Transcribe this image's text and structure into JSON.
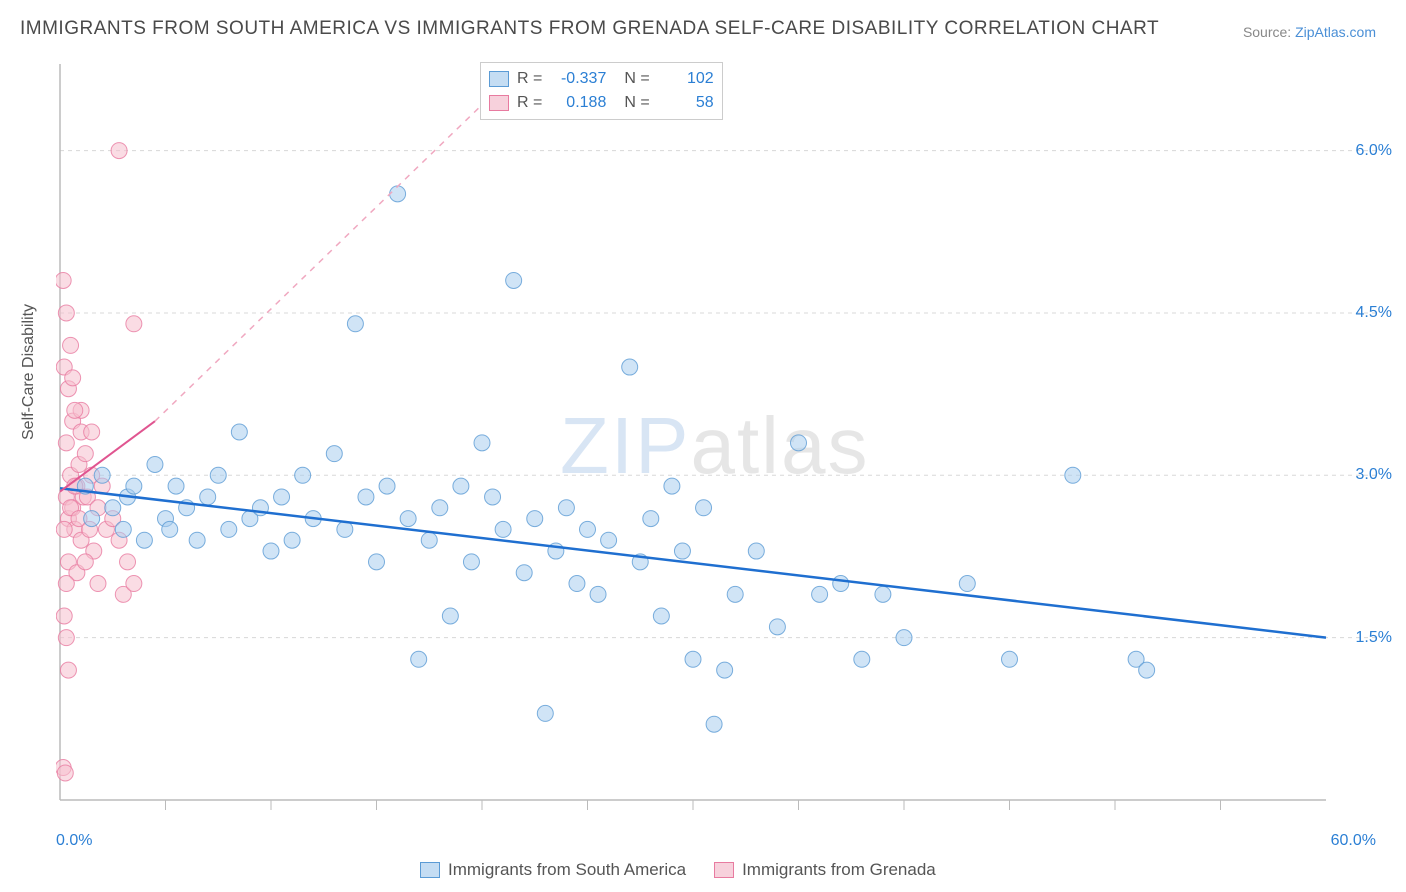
{
  "title": "IMMIGRANTS FROM SOUTH AMERICA VS IMMIGRANTS FROM GRENADA SELF-CARE DISABILITY CORRELATION CHART",
  "source_prefix": "Source: ",
  "source_link": "ZipAtlas.com",
  "ylabel": "Self-Care Disability",
  "watermark_a": "ZIP",
  "watermark_b": "atlas",
  "chart": {
    "type": "scatter",
    "xlim": [
      0,
      60
    ],
    "ylim": [
      0,
      6.8
    ],
    "xtick_min_label": "0.0%",
    "xtick_max_label": "60.0%",
    "xtick_positions": [
      5,
      10,
      15,
      20,
      25,
      30,
      35,
      40,
      45,
      50,
      55
    ],
    "ytick_positions": [
      1.5,
      3.0,
      4.5,
      6.0
    ],
    "ytick_labels": [
      "1.5%",
      "3.0%",
      "4.5%",
      "6.0%"
    ],
    "grid_color": "#d8d8d8",
    "axis_color": "#bbbbbb",
    "background_color": "#ffffff",
    "marker_radius": 8,
    "marker_opacity": 0.55,
    "series": [
      {
        "name": "Immigrants from South America",
        "fill": "#a9cdef",
        "stroke": "#5b9bd5",
        "swatch_fill": "#c5ddf3",
        "swatch_stroke": "#5b9bd5",
        "R": "-0.337",
        "N": "102",
        "trend": {
          "x1": 0,
          "y1": 2.88,
          "x2": 60,
          "y2": 1.5,
          "color": "#1f6fd0",
          "width": 2.5,
          "dash": ""
        },
        "points": [
          [
            1.2,
            2.9
          ],
          [
            1.5,
            2.6
          ],
          [
            2.0,
            3.0
          ],
          [
            2.5,
            2.7
          ],
          [
            3.0,
            2.5
          ],
          [
            3.2,
            2.8
          ],
          [
            3.5,
            2.9
          ],
          [
            4.0,
            2.4
          ],
          [
            4.5,
            3.1
          ],
          [
            5.0,
            2.6
          ],
          [
            5.2,
            2.5
          ],
          [
            5.5,
            2.9
          ],
          [
            6.0,
            2.7
          ],
          [
            6.5,
            2.4
          ],
          [
            7.0,
            2.8
          ],
          [
            7.5,
            3.0
          ],
          [
            8.0,
            2.5
          ],
          [
            8.5,
            3.4
          ],
          [
            9.0,
            2.6
          ],
          [
            9.5,
            2.7
          ],
          [
            10.0,
            2.3
          ],
          [
            10.5,
            2.8
          ],
          [
            11.0,
            2.4
          ],
          [
            11.5,
            3.0
          ],
          [
            12.0,
            2.6
          ],
          [
            13.0,
            3.2
          ],
          [
            13.5,
            2.5
          ],
          [
            14.0,
            4.4
          ],
          [
            14.5,
            2.8
          ],
          [
            15.0,
            2.2
          ],
          [
            15.5,
            2.9
          ],
          [
            16.0,
            5.6
          ],
          [
            16.5,
            2.6
          ],
          [
            17.0,
            1.3
          ],
          [
            17.5,
            2.4
          ],
          [
            18.0,
            2.7
          ],
          [
            18.5,
            1.7
          ],
          [
            19.0,
            2.9
          ],
          [
            19.5,
            2.2
          ],
          [
            20.0,
            3.3
          ],
          [
            20.5,
            2.8
          ],
          [
            21.0,
            2.5
          ],
          [
            21.5,
            4.8
          ],
          [
            22.0,
            2.1
          ],
          [
            22.5,
            2.6
          ],
          [
            23.0,
            0.8
          ],
          [
            23.5,
            2.3
          ],
          [
            24.0,
            2.7
          ],
          [
            24.5,
            2.0
          ],
          [
            25.0,
            2.5
          ],
          [
            25.5,
            1.9
          ],
          [
            26.0,
            2.4
          ],
          [
            27.0,
            4.0
          ],
          [
            27.5,
            2.2
          ],
          [
            28.0,
            2.6
          ],
          [
            28.5,
            1.7
          ],
          [
            29.0,
            2.9
          ],
          [
            29.5,
            2.3
          ],
          [
            30.0,
            1.3
          ],
          [
            30.5,
            2.7
          ],
          [
            31.0,
            0.7
          ],
          [
            31.5,
            1.2
          ],
          [
            32.0,
            1.9
          ],
          [
            33.0,
            2.3
          ],
          [
            34.0,
            1.6
          ],
          [
            35.0,
            3.3
          ],
          [
            36.0,
            1.9
          ],
          [
            37.0,
            2.0
          ],
          [
            38.0,
            1.3
          ],
          [
            39.0,
            1.9
          ],
          [
            40.0,
            1.5
          ],
          [
            43.0,
            2.0
          ],
          [
            45.0,
            1.3
          ],
          [
            51.0,
            1.3
          ],
          [
            51.5,
            1.2
          ],
          [
            48.0,
            3.0
          ]
        ]
      },
      {
        "name": "Immigrants from Grenada",
        "fill": "#f5c0ce",
        "stroke": "#e87ba0",
        "swatch_fill": "#f7d1dc",
        "swatch_stroke": "#e87ba0",
        "R": "0.188",
        "N": "58",
        "trend_solid": {
          "x1": 0,
          "y1": 2.85,
          "x2": 4.5,
          "y2": 3.5,
          "color": "#e05590",
          "width": 2,
          "dash": ""
        },
        "trend_dashed": {
          "x1": 4.5,
          "y1": 3.5,
          "x2": 22,
          "y2": 6.8,
          "color": "#f0a8c0",
          "width": 1.5,
          "dash": "6,6"
        },
        "points": [
          [
            0.3,
            2.8
          ],
          [
            0.4,
            2.6
          ],
          [
            0.5,
            3.0
          ],
          [
            0.6,
            2.7
          ],
          [
            0.7,
            2.5
          ],
          [
            0.8,
            2.9
          ],
          [
            0.9,
            3.1
          ],
          [
            1.0,
            2.4
          ],
          [
            1.1,
            2.8
          ],
          [
            1.2,
            3.2
          ],
          [
            0.2,
            2.5
          ],
          [
            0.3,
            3.3
          ],
          [
            0.4,
            2.2
          ],
          [
            0.5,
            2.7
          ],
          [
            0.6,
            3.5
          ],
          [
            0.7,
            2.9
          ],
          [
            0.8,
            2.1
          ],
          [
            0.9,
            2.6
          ],
          [
            1.0,
            3.4
          ],
          [
            1.3,
            2.8
          ],
          [
            1.4,
            2.5
          ],
          [
            1.5,
            3.0
          ],
          [
            1.6,
            2.3
          ],
          [
            1.8,
            2.7
          ],
          [
            2.0,
            2.9
          ],
          [
            2.2,
            2.5
          ],
          [
            2.5,
            2.6
          ],
          [
            2.8,
            2.4
          ],
          [
            3.0,
            1.9
          ],
          [
            3.2,
            2.2
          ],
          [
            3.5,
            2.0
          ],
          [
            0.2,
            1.7
          ],
          [
            0.3,
            1.5
          ],
          [
            0.4,
            1.2
          ],
          [
            0.15,
            0.3
          ],
          [
            0.25,
            0.25
          ],
          [
            0.2,
            4.0
          ],
          [
            0.3,
            4.5
          ],
          [
            0.4,
            3.8
          ],
          [
            0.5,
            4.2
          ],
          [
            1.0,
            3.6
          ],
          [
            1.5,
            3.4
          ],
          [
            2.8,
            6.0
          ],
          [
            3.5,
            4.4
          ],
          [
            0.6,
            3.9
          ],
          [
            0.7,
            3.6
          ],
          [
            0.15,
            4.8
          ],
          [
            0.3,
            2.0
          ],
          [
            1.2,
            2.2
          ],
          [
            1.8,
            2.0
          ]
        ]
      }
    ]
  },
  "legend_labels": {
    "r": "R =",
    "n": "N ="
  }
}
